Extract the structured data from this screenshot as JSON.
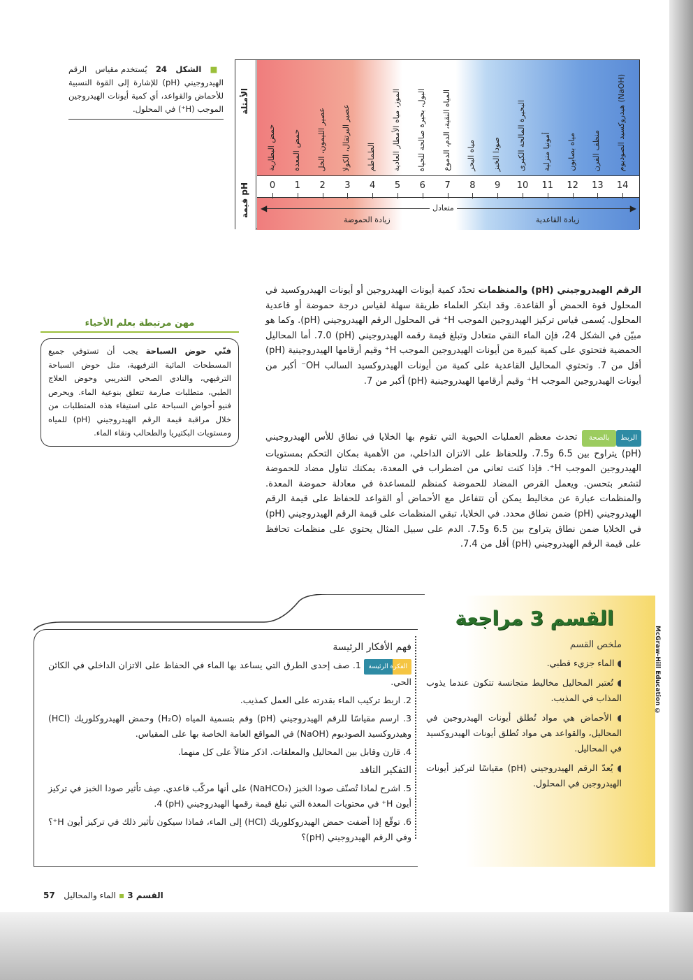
{
  "figure": {
    "caption_label": "الشكل 24",
    "caption_text": "يُستخدم مقياس الرقم الهيدروجيني (pH) للإشارة إلى القوة النسبية للأحماض والقواعد، أي كمية أيونات الهيدروجين الموجب (H⁺) في المحلول.",
    "examples_heading": "الأمثلة",
    "ph_heading": "قيمة pH",
    "values": [
      "0",
      "1",
      "2",
      "3",
      "4",
      "5",
      "6",
      "7",
      "8",
      "9",
      "10",
      "11",
      "12",
      "13",
      "14"
    ],
    "examples": [
      "حمض البطارية",
      "حمض المعدة",
      "عصير الليمون، الخل",
      "عصير البرتقال، الكولا",
      "الطماطم",
      "الموز، مياه الأمطار العادية",
      "البول، بحيرة صالحة للحياة",
      "المياه النقية، الدم، الدموع",
      "مياه البحر",
      "صودا الخبز",
      "البحيرة المالحة الكبرى",
      "أمونيا منزلية",
      "مياه بصابون",
      "منظف الفرن",
      "هيدروكسيد الصوديوم (NaOH)"
    ],
    "neutral": "متعادل",
    "increasing_acidity": "زيادة الحموضة",
    "increasing_basicity": "زيادة القاعدية",
    "colors": {
      "acid": "#f07d7d",
      "base": "#5a8bd6"
    }
  },
  "main": {
    "heading": "الرقم الهيدروجيني (pH) والمنظمات",
    "text": "تحدّد كمية أيونات الهيدروجين أو أيونات الهيدروكسيد في المحلول قوة الحمض أو القاعدة. وقد ابتكر العلماء طريقة سهلة لقياس درجة حموضة أو قاعدية المحلول. يُسمى قياس تركيز الهيدروجين الموجب H⁺ في المحلول الرقم الهيدروجيني (pH). وكما هو مبيّن في الشكل 24، فإن الماء النقي متعادل وتبلغ قيمة رقمه الهيدروجيني (pH) 7.0. أما المحاليل الحمضية فتحتوي على كمية كبيرة من أيونات الهيدروجين الموجب H⁺ وقيم أرقامها الهيدروجينية (pH) أقل من 7. وتحتوي المحاليل القاعدية على كمية من أيونات الهيدروكسيد السالب OH⁻ أكبر من أيونات الهيدروجين الموجب H⁺ وقيم أرقامها الهيدروجينية (pH) أكبر من 7."
  },
  "health": {
    "tag": "الربط",
    "tag2": "بالصحة",
    "text": "تحدث معظم العمليات الحيوية التي تقوم بها الخلايا في نطاق للأس الهيدروجيني (pH) يتراوح بين 6.5 و7.5. وللحفاظ على الاتزان الداخلي، من الأهمية بمكان التحكم بمستويات الهيدروجين الموجب H⁺. فإذا كنت تعاني من اضطراب في المعدة، يمكنك تناول مضاد للحموضة لتشعر بتحسن. ويعمل القرص المضاد للحموضة كمنظم للمساعدة في معادلة حموضة المعدة. والمنظمات عبارة عن مخاليط يمكن أن تتفاعل مع الأحماض أو القواعد للحفاظ على قيمة الرقم الهيدروجيني (pH) ضمن نطاق محدد. في الخلايا، تبقي المنظمات على قيمة الرقم الهيدروجيني (pH) في الخلايا ضمن نطاق يتراوح بين 6.5 و7.5. الدم على سبيل المثال يحتوي على منظمات تحافظ على قيمة الرقم الهيدروجيني (pH) أقل من 7.4."
  },
  "career": {
    "title": "مهن مرتبطة بعلم الأحياء",
    "lead": "فنّي حوض السباحة",
    "text": "يجب أن تستوفي جميع المسطحات المائية الترفيهية، مثل حوض السباحة الترفيهي، والنادي الصحي التدريبي وحوض العلاج الطبي، متطلبات صارمة تتعلق بنوعية الماء. ويحرص فنيو أحواض السباحة على استيفاء هذه المتطلبات من خلال مراقبة قيمة الرقم الهيدروجيني (pH) للمياه ومستويات البكتيريا والطحالب ونقاء الماء."
  },
  "review": {
    "title": "القسم 3 مراجعة",
    "summary_heading": "ملخص القسم",
    "summary": [
      "الماء جزيء قطبي.",
      "تُعتبر المحاليل مخاليط متجانسة تتكون عندما يذوب المذاب في المذيب.",
      "الأحماض هي مواد تُطلق أيونات الهيدروجين في المحاليل، والقواعد هي مواد تُطلق أيونات الهيدروكسيد في المحاليل.",
      "يُعدّ الرقم الهيدروجيني (pH) مقياسًا لتركيز أيونات الهيدروجين في المحلول."
    ],
    "main_ideas_heading": "فهم الأفكار الرئيسة",
    "core_tag": "الفكرة الرئيسة",
    "questions": [
      "1. صف إحدى الطرق التي يساعد بها الماء في الحفاظ على الاتزان الداخلي في الكائن الحي.",
      "2. اربط تركيب الماء بقدرته على العمل كمذيب.",
      "3. ارسم مقياسًا للرقم الهيدروجيني (pH) وقم بتسمية المياه (H₂O) وحمض الهيدروكلوريك (HCl) وهيدروكسيد الصوديوم (NaOH) في المواقع العامة الخاصة بها على المقياس.",
      "4. قارن وقابل بين المحاليل والمعلقات. اذكر مثالاً على كل منهما."
    ],
    "critical_heading": "التفكير الناقد",
    "critical": [
      "5. اشرح لماذا تُصنّف صودا الخبز (NaHCO₃) على أنها مركّب قاعدي. صِف تأثير صودا الخبز في تركيز أيون H⁺ في محتويات المعدة التي تبلغ قيمة رقمها الهيدروجيني (pH) 4.",
      "6. توقّع إذا أضفت حمض الهيدروكلوريك (HCl) إلى الماء، فماذا سيكون تأثير ذلك في تركيز أيون H⁺؟ وفي الرقم الهيدروجيني (pH)؟"
    ]
  },
  "footer": {
    "section": "القسم 3",
    "sep": "▪",
    "chapter": "الماء والمحاليل",
    "page": "57"
  },
  "copyright": "McGraw-Hill Education ©"
}
